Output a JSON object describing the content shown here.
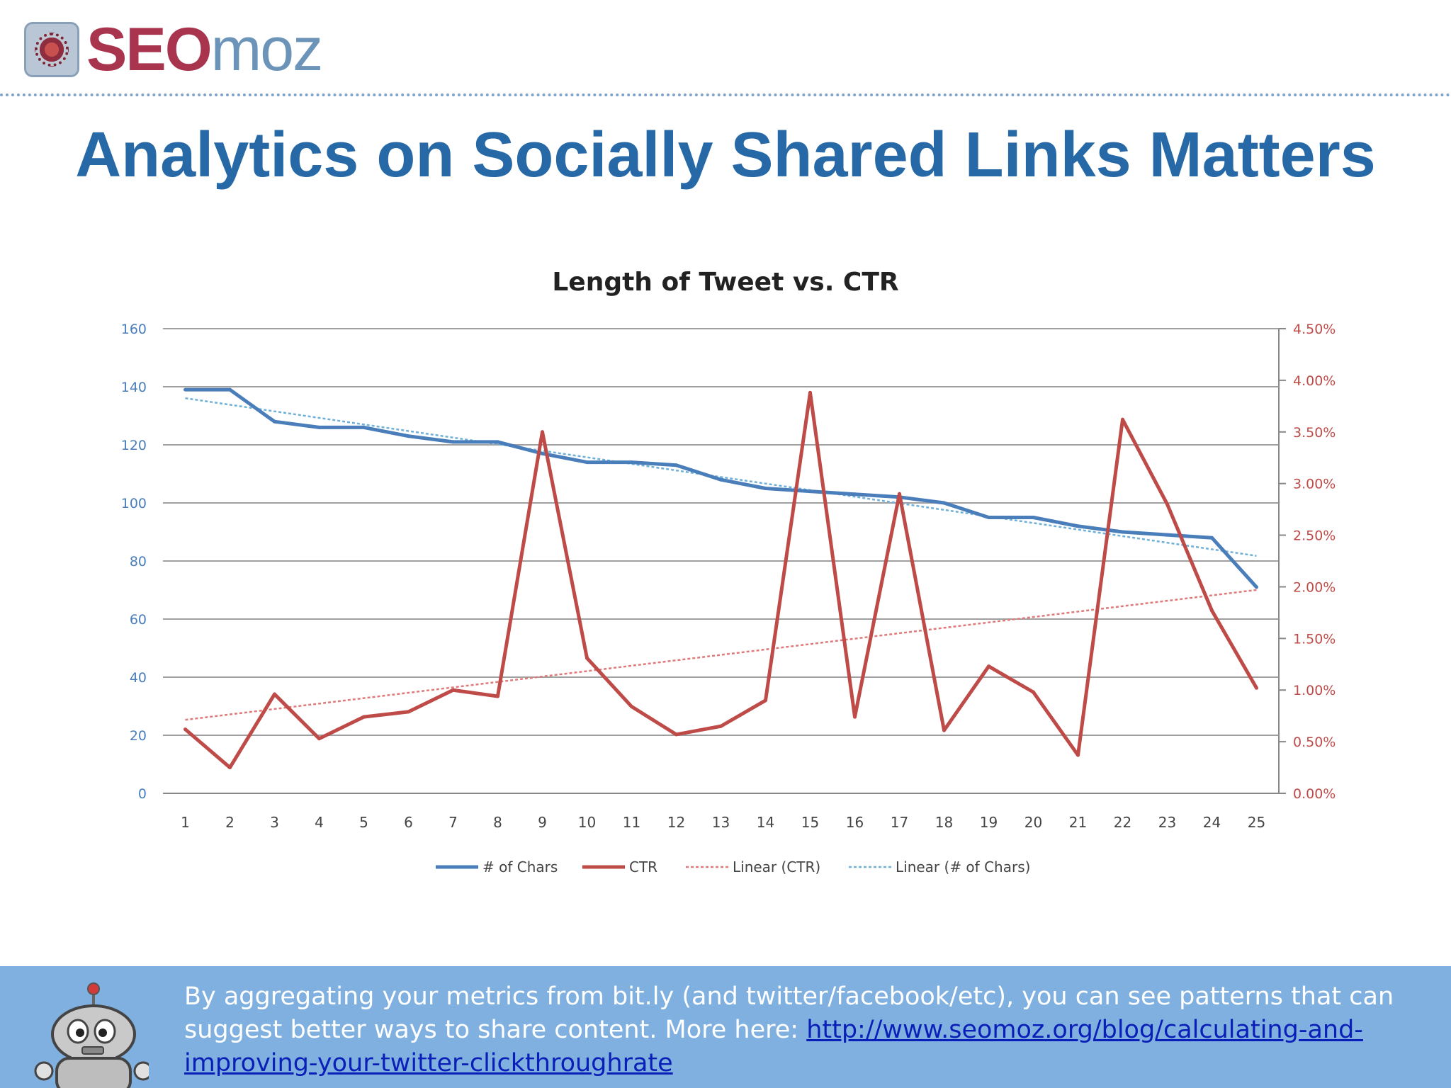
{
  "header": {
    "logo_seo": "SEO",
    "logo_moz": "moz",
    "title": "Analytics on Socially Shared Links Matters"
  },
  "footer": {
    "text": "By aggregating your metrics from bit.ly (and twitter/facebook/etc), you can see patterns that can suggest better ways to share content. More here: ",
    "link": "http://www.seomoz.org/blog/calculating-and-improving-your-twitter-clickthroughrate"
  },
  "colors": {
    "title": "#2769a7",
    "chars": "#4a7ebb",
    "ctr": "#be4b48",
    "footer_bg": "#7fb0e0"
  },
  "chart_data": {
    "type": "line",
    "title": "Length of Tweet vs. CTR",
    "x": [
      1,
      2,
      3,
      4,
      5,
      6,
      7,
      8,
      9,
      10,
      11,
      12,
      13,
      14,
      15,
      16,
      17,
      18,
      19,
      20,
      21,
      22,
      23,
      24,
      25
    ],
    "y_left_lim": [
      0,
      160
    ],
    "y_left_ticks": [
      "0",
      "20",
      "40",
      "60",
      "80",
      "100",
      "120",
      "140",
      "160"
    ],
    "y_right_lim": [
      0,
      4.5
    ],
    "y_right_ticks": [
      "0.00%",
      "0.50%",
      "1.00%",
      "1.50%",
      "2.00%",
      "2.50%",
      "3.00%",
      "3.50%",
      "4.00%",
      "4.50%"
    ],
    "grid": true,
    "legend_position": "bottom",
    "series": [
      {
        "name": "# of Chars",
        "axis": "left",
        "color": "#4a7ebb",
        "values": [
          139,
          139,
          128,
          126,
          126,
          123,
          121,
          121,
          117,
          114,
          114,
          113,
          108,
          105,
          104,
          103,
          102,
          100,
          95,
          95,
          92,
          90,
          89,
          88,
          71
        ]
      },
      {
        "name": "CTR",
        "axis": "right",
        "color": "#be4b48",
        "values": [
          0.62,
          0.25,
          0.96,
          0.53,
          0.74,
          0.79,
          1.0,
          0.94,
          3.5,
          1.31,
          0.84,
          0.57,
          0.65,
          0.9,
          3.88,
          0.74,
          2.9,
          0.61,
          1.23,
          0.98,
          0.37,
          3.62,
          2.8,
          1.77,
          1.02
        ]
      },
      {
        "name": "Linear (CTR)",
        "axis": "right",
        "color": "#e07a7a",
        "trend_of": "CTR",
        "dashed": true
      },
      {
        "name": "Linear (# of Chars)",
        "axis": "left",
        "color": "#6fb0d8",
        "trend_of": "# of Chars",
        "dashed": true
      }
    ]
  }
}
